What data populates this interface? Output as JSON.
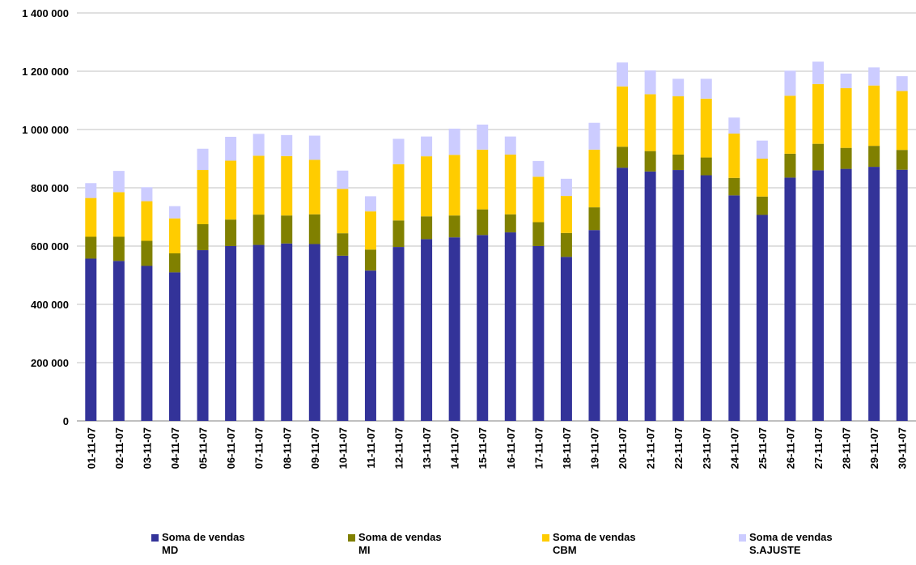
{
  "chart_data": {
    "type": "bar",
    "stacked": true,
    "categories": [
      "01-11-07",
      "02-11-07",
      "03-11-07",
      "04-11-07",
      "05-11-07",
      "06-11-07",
      "07-11-07",
      "08-11-07",
      "09-11-07",
      "10-11-07",
      "11-11-07",
      "12-11-07",
      "13-11-07",
      "14-11-07",
      "15-11-07",
      "16-11-07",
      "17-11-07",
      "18-11-07",
      "19-11-07",
      "20-11-07",
      "21-11-07",
      "22-11-07",
      "23-11-07",
      "24-11-07",
      "25-11-07",
      "26-11-07",
      "27-11-07",
      "28-11-07",
      "29-11-07",
      "30-11-07"
    ],
    "series": [
      {
        "name": "Soma de vendas\nMD",
        "color": "#333399",
        "values": [
          557000,
          549000,
          532000,
          510000,
          586000,
          600000,
          604000,
          609000,
          607000,
          567000,
          516000,
          597000,
          624000,
          630000,
          638000,
          647000,
          600000,
          563000,
          655000,
          869000,
          856000,
          861000,
          843000,
          774000,
          707000,
          835000,
          860000,
          865000,
          872000,
          862000
        ]
      },
      {
        "name": "Soma de vendas\nMI",
        "color": "#808000",
        "values": [
          75000,
          83000,
          86000,
          65000,
          89000,
          91000,
          104000,
          96000,
          102000,
          77000,
          72000,
          91000,
          78000,
          75000,
          88000,
          62000,
          82000,
          82000,
          78000,
          72000,
          70000,
          53000,
          61000,
          60000,
          63000,
          82000,
          91000,
          72000,
          72000,
          68000
        ]
      },
      {
        "name": "Soma de vendas\nCBM",
        "color": "#FFCC00",
        "values": [
          133000,
          153000,
          136000,
          120000,
          186000,
          202000,
          202000,
          204000,
          187000,
          152000,
          131000,
          193000,
          206000,
          208000,
          205000,
          205000,
          156000,
          127000,
          198000,
          207000,
          195000,
          200000,
          202000,
          152000,
          130000,
          199000,
          205000,
          205000,
          207000,
          202000
        ]
      },
      {
        "name": "Soma de vendas\nS.AJUSTE",
        "color": "#CCCCFF",
        "values": [
          51000,
          73000,
          48000,
          42000,
          73000,
          82000,
          75000,
          72000,
          83000,
          63000,
          52000,
          87000,
          68000,
          90000,
          86000,
          62000,
          54000,
          59000,
          92000,
          82000,
          82000,
          60000,
          68000,
          55000,
          62000,
          86000,
          77000,
          50000,
          62000,
          51000
        ]
      }
    ],
    "ylim": [
      0,
      1400000
    ],
    "yticks": [
      0,
      200000,
      400000,
      600000,
      800000,
      1000000,
      1200000,
      1400000
    ],
    "ytick_labels": [
      "0",
      "200 000",
      "400 000",
      "600 000",
      "800 000",
      "1 000 000",
      "1 200 000",
      "1 400 000"
    ],
    "grid": true,
    "legend_position": "bottom",
    "title": "",
    "xlabel": "",
    "ylabel": ""
  }
}
